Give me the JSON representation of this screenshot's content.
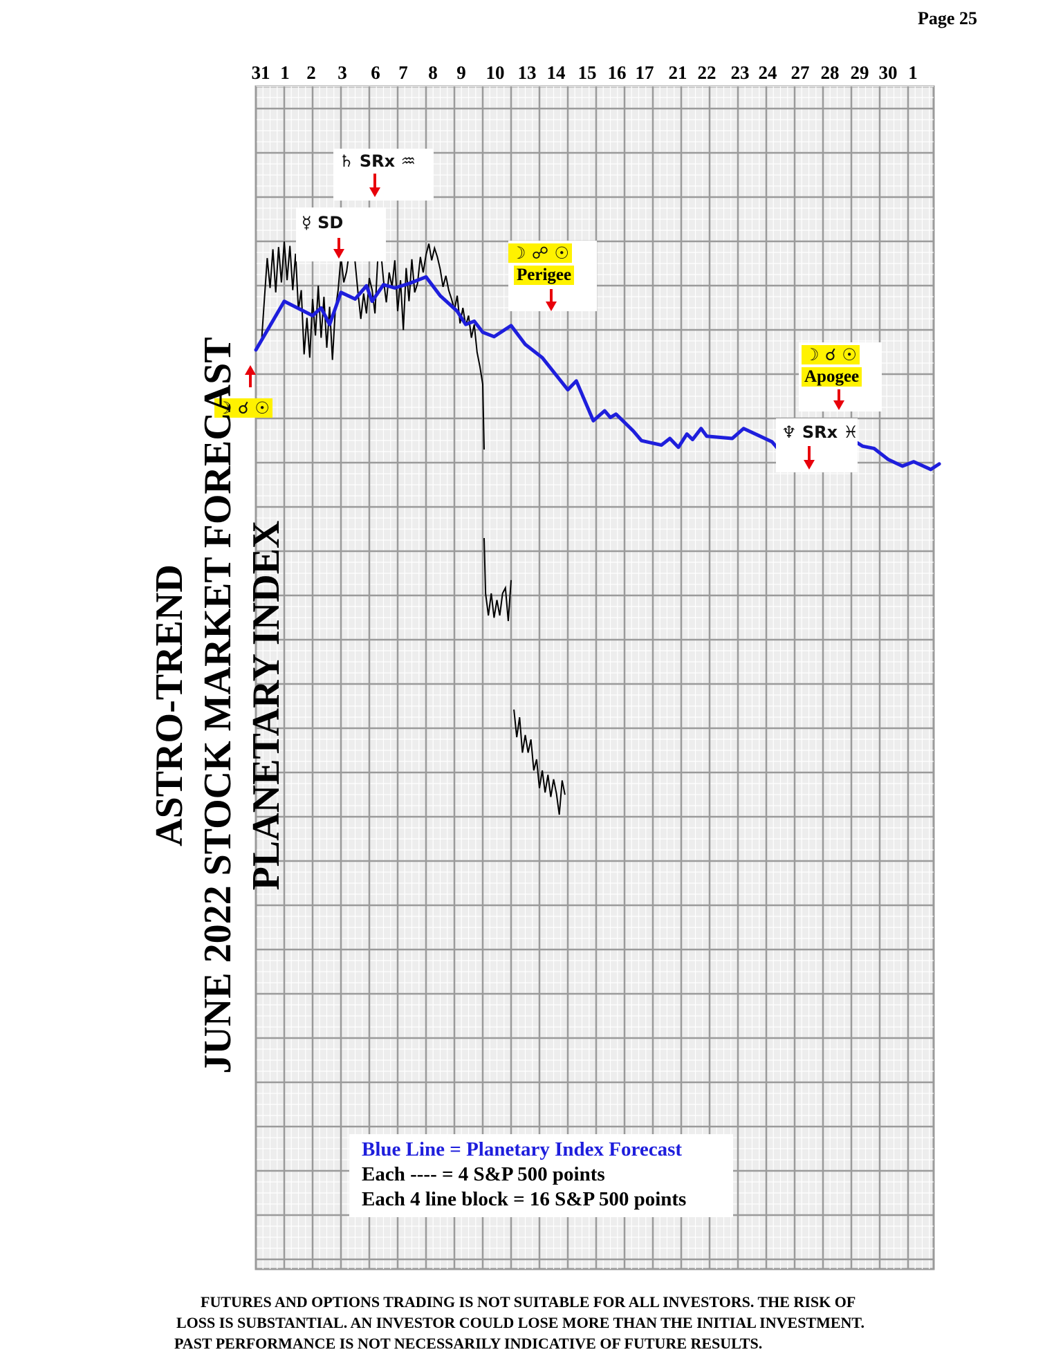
{
  "page": {
    "number": "Page 25"
  },
  "title_lines": [
    "ASTRO-TREND",
    "JUNE 2022  STOCK MARKET FORECAST",
    "PLANETARY INDEX"
  ],
  "legend": {
    "line1": "Blue Line = Planetary Index Forecast",
    "line2": "Each ---- =   4 S&P 500 points",
    "line3": "Each 4 line block =  16  S&P 500 points"
  },
  "disclaimer": [
    "FUTURES AND OPTIONS TRADING IS NOT SUITABLE FOR ALL INVESTORS.  THE RISK OF",
    "LOSS IS SUBSTANTIAL.  AN INVESTOR COULD LOSE MORE THAN THE INITIAL INVESTMENT.",
    "PAST PERFORMANCE IS NOT NECESSARILY INDICATIVE OF FUTURE RESULTS."
  ],
  "annotations": {
    "moon_conj_sun": {
      "symbols": "☽ ☌ ☉",
      "arrow": "up"
    },
    "mercury_station": {
      "symbols": "☿ SD",
      "arrow": "down"
    },
    "saturn_retro": {
      "symbols": "♄ SRx ♒",
      "arrow": "down"
    },
    "moon_opp_sun_perigee": {
      "symbols": "☽ ☍ ☉",
      "label": "Perigee",
      "arrow": "down"
    },
    "moon_conj_sun_apogee": {
      "symbols": "☽ ☌ ☉",
      "label": "Apogee",
      "arrow": "down"
    },
    "neptune_retro": {
      "symbols": "♆ SRx ♓",
      "arrow": "down"
    }
  },
  "colors": {
    "forecast_line": "#1e1edc",
    "price_line": "#000000",
    "grid_major": "#9a9a9a",
    "grid_minor": "#d2d2d2",
    "grid_bg": "#ededed",
    "highlight": "#fff200",
    "arrow": "#e8000b"
  },
  "chart_data": {
    "type": "line",
    "x_ticks": [
      "31",
      "1",
      "2",
      "3",
      "6",
      "7",
      "8",
      "9",
      "10",
      "13",
      "14",
      "15",
      "16",
      "17",
      "21",
      "22",
      "23",
      "24",
      "27",
      "28",
      "29",
      "30",
      "1"
    ],
    "y_axis": {
      "units": "S&P 500 points",
      "minor_step": 4,
      "block_step": 16,
      "grid": true
    },
    "series": [
      {
        "name": "Blue Line = Planetary Index Forecast",
        "style": "forecast",
        "points": [
          [
            0,
            0
          ],
          [
            1,
            4.4
          ],
          [
            2,
            3.1
          ],
          [
            2.3,
            3.8
          ],
          [
            2.6,
            2.3
          ],
          [
            3,
            5.2
          ],
          [
            3.5,
            4.6
          ],
          [
            3.9,
            5.8
          ],
          [
            4.1,
            4.4
          ],
          [
            4.5,
            5.9
          ],
          [
            4.9,
            5.6
          ],
          [
            5.4,
            6
          ],
          [
            6,
            6.6
          ],
          [
            6.5,
            4.9
          ],
          [
            7.1,
            3.5
          ],
          [
            7.4,
            2.3
          ],
          [
            7.7,
            2.6
          ],
          [
            8,
            1.6
          ],
          [
            8.4,
            1.2
          ],
          [
            9,
            2.2
          ],
          [
            9.5,
            0.5
          ],
          [
            10.1,
            -0.7
          ],
          [
            11,
            -3.6
          ],
          [
            11.3,
            -2.8
          ],
          [
            11.9,
            -6.4
          ],
          [
            12.3,
            -5.5
          ],
          [
            12.5,
            -6.1
          ],
          [
            12.7,
            -5.8
          ],
          [
            13.3,
            -7.3
          ],
          [
            13.6,
            -8.2
          ],
          [
            14.3,
            -8.6
          ],
          [
            14.6,
            -8
          ],
          [
            14.9,
            -8.8
          ],
          [
            15.2,
            -7.6
          ],
          [
            15.4,
            -8.1
          ],
          [
            15.7,
            -7.1
          ],
          [
            15.9,
            -7.8
          ],
          [
            16.8,
            -8
          ],
          [
            17.2,
            -7.1
          ],
          [
            17.7,
            -7.7
          ],
          [
            18.2,
            -8.3
          ],
          [
            18.9,
            -10.4
          ],
          [
            19.6,
            -8.7
          ],
          [
            19.9,
            -8.6
          ],
          [
            20.4,
            -7.9
          ],
          [
            20.7,
            -8.4
          ],
          [
            20.9,
            -7.9
          ],
          [
            21.4,
            -8.7
          ],
          [
            21.8,
            -8.9
          ],
          [
            22.3,
            -9.9
          ],
          [
            22.8,
            -10.5
          ],
          [
            23.2,
            -10.1
          ],
          [
            23.8,
            -10.8
          ],
          [
            24.1,
            -10.3
          ]
        ]
      },
      {
        "name": "S&P 500",
        "style": "actual",
        "segments": [
          [
            [
              0.2,
              0.8
            ],
            [
              0.3,
              4.6
            ],
            [
              0.4,
              8.3
            ],
            [
              0.5,
              5.6
            ],
            [
              0.6,
              9.1
            ],
            [
              0.7,
              5.2
            ],
            [
              0.8,
              9.3
            ],
            [
              0.9,
              6.1
            ],
            [
              1,
              9.8
            ],
            [
              1.1,
              6.3
            ],
            [
              1.2,
              9.4
            ],
            [
              1.3,
              5.4
            ],
            [
              1.4,
              8.7
            ],
            [
              1.5,
              3.6
            ],
            [
              1.6,
              5.4
            ],
            [
              1.7,
              -0.4
            ],
            [
              1.8,
              2.9
            ],
            [
              1.9,
              -0.7
            ],
            [
              2,
              4.6
            ],
            [
              2.1,
              1.3
            ],
            [
              2.2,
              5.8
            ],
            [
              2.3,
              1.1
            ],
            [
              2.4,
              4.8
            ],
            [
              2.5,
              0.2
            ],
            [
              2.6,
              3.9
            ],
            [
              2.7,
              -0.9
            ],
            [
              2.8,
              3.6
            ],
            [
              2.9,
              5.4
            ],
            [
              3,
              8.4
            ],
            [
              3.1,
              6.1
            ],
            [
              3.2,
              7.1
            ],
            [
              3.3,
              9
            ],
            [
              3.4,
              10.9
            ],
            [
              3.5,
              7.9
            ],
            [
              3.6,
              5.2
            ],
            [
              3.7,
              2.8
            ],
            [
              3.8,
              5.1
            ],
            [
              3.9,
              3.3
            ],
            [
              4,
              6.5
            ],
            [
              4.1,
              5.4
            ],
            [
              4.2,
              3.3
            ],
            [
              4.3,
              8.4
            ],
            [
              4.4,
              9.1
            ],
            [
              4.5,
              6.3
            ],
            [
              4.6,
              4.3
            ],
            [
              4.7,
              7
            ],
            [
              4.8,
              5.7
            ],
            [
              4.9,
              8.1
            ],
            [
              5,
              3.5
            ],
            [
              5.1,
              6.3
            ],
            [
              5.2,
              1.8
            ],
            [
              5.3,
              7.4
            ],
            [
              5.4,
              4.4
            ],
            [
              5.5,
              8.2
            ],
            [
              5.6,
              5.2
            ],
            [
              5.7,
              6
            ],
            [
              5.8,
              8.4
            ],
            [
              5.9,
              7
            ],
            [
              6,
              8.6
            ],
            [
              6.1,
              9.6
            ],
            [
              6.2,
              8.1
            ],
            [
              6.3,
              9.2
            ],
            [
              6.4,
              8.4
            ],
            [
              6.5,
              7.3
            ],
            [
              6.6,
              5.7
            ],
            [
              6.7,
              6.7
            ],
            [
              6.8,
              5.4
            ],
            [
              6.9,
              4.6
            ],
            [
              7,
              3.6
            ],
            [
              7.1,
              4.9
            ],
            [
              7.2,
              2.4
            ],
            [
              7.3,
              3.8
            ],
            [
              7.4,
              2.2
            ],
            [
              7.5,
              3.1
            ],
            [
              7.6,
              1.1
            ],
            [
              7.7,
              2.3
            ],
            [
              7.8,
              -0.2
            ],
            [
              7.9,
              -1.5
            ],
            [
              8,
              -3.1
            ],
            [
              8.05,
              -9
            ]
          ],
          [
            [
              8.05,
              -17
            ],
            [
              8.1,
              -22
            ],
            [
              8.2,
              -24
            ],
            [
              8.3,
              -22
            ],
            [
              8.4,
              -24.2
            ],
            [
              8.5,
              -22.6
            ],
            [
              8.6,
              -24
            ],
            [
              8.7,
              -22
            ],
            [
              8.8,
              -21.5
            ],
            [
              8.9,
              -24.5
            ],
            [
              9,
              -20.8
            ]
          ],
          [
            [
              9.1,
              -32.5
            ],
            [
              9.2,
              -35
            ],
            [
              9.3,
              -33.2
            ],
            [
              9.4,
              -36.4
            ],
            [
              9.5,
              -34.8
            ],
            [
              9.6,
              -36.4
            ],
            [
              9.7,
              -35.2
            ],
            [
              9.8,
              -38
            ],
            [
              9.9,
              -37
            ],
            [
              10,
              -39.6
            ],
            [
              10.1,
              -38
            ],
            [
              10.2,
              -40
            ],
            [
              10.3,
              -38.4
            ],
            [
              10.4,
              -40.4
            ],
            [
              10.5,
              -38.8
            ],
            [
              10.6,
              -40.1
            ],
            [
              10.7,
              -42
            ],
            [
              10.8,
              -38.9
            ],
            [
              10.9,
              -40.2
            ]
          ]
        ]
      }
    ]
  }
}
